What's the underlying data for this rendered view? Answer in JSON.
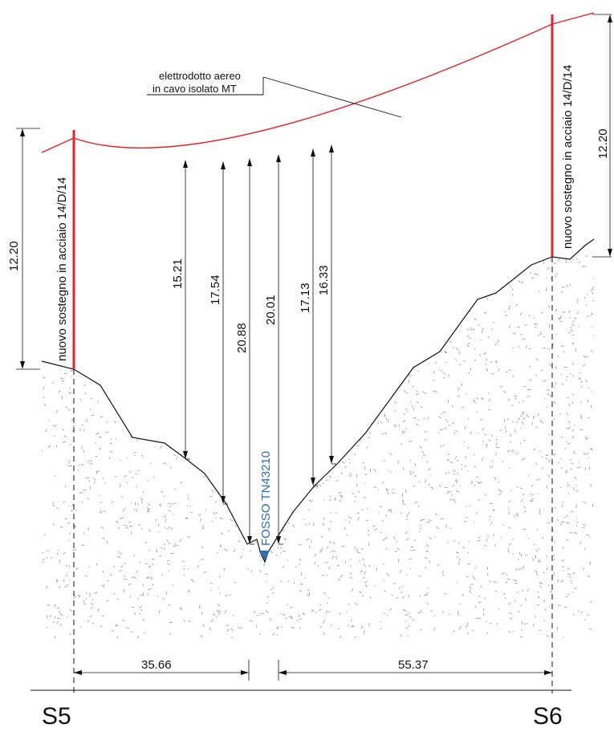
{
  "cable_label": {
    "line1": "elettrodotto aereo",
    "line2": "in cavo isolato MT"
  },
  "poles": {
    "left": {
      "label": "nuovo sostegno in acciaio 14/D/14",
      "height": "12.20"
    },
    "right": {
      "label": "nuovo sostegno in acciaio 14/D/14",
      "height": "12.20"
    }
  },
  "clearances": [
    "15.21",
    "17.54",
    "20.88",
    "20.01",
    "17.13",
    "16.33"
  ],
  "ditch": {
    "label": "FOSSO TN43210"
  },
  "distances": {
    "left": "35.66",
    "right": "55.37"
  },
  "stations": {
    "left": "S5",
    "right": "S6"
  },
  "colors": {
    "cable": "#e8202a",
    "pole": "#e8202a",
    "ditch": "#2f6db5",
    "line": "#111111",
    "soil_dots": "#8a8a8a"
  }
}
